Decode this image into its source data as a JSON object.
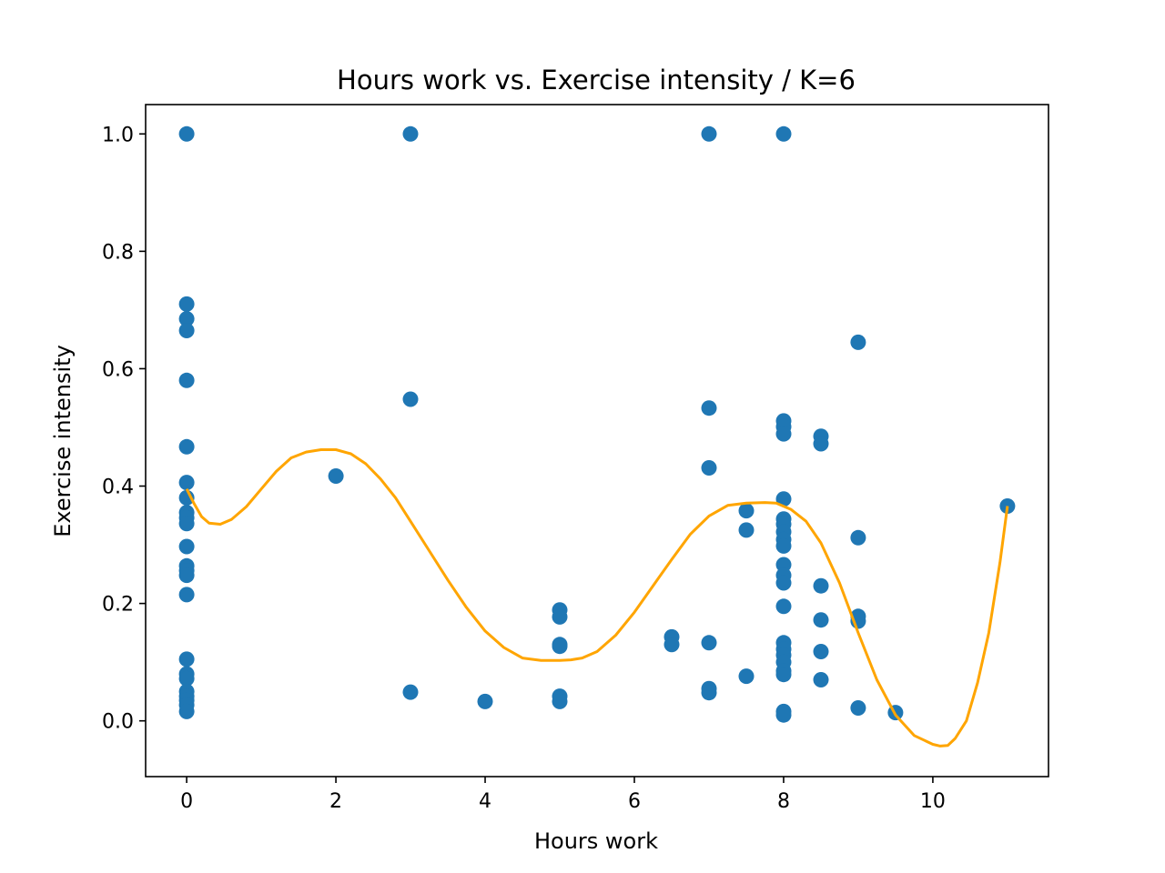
{
  "chart_data": {
    "type": "scatter",
    "title": "Hours work vs. Exercise intensity / K=6",
    "xlabel": "Hours work",
    "ylabel": "Exercise intensity",
    "xlim": [
      -0.55,
      11.55
    ],
    "ylim": [
      -0.095,
      1.05
    ],
    "xticks": [
      0,
      2,
      4,
      6,
      8,
      10
    ],
    "yticks": [
      0.0,
      0.2,
      0.4,
      0.6,
      0.8,
      1.0
    ],
    "xtick_labels": [
      "0",
      "2",
      "4",
      "6",
      "8",
      "10"
    ],
    "ytick_labels": [
      "0.0",
      "0.2",
      "0.4",
      "0.6",
      "0.8",
      "1.0"
    ],
    "grid": false,
    "colors": {
      "points": "#1f77b4",
      "fit": "#ffa500"
    },
    "points": [
      [
        0,
        1.0
      ],
      [
        0,
        0.71
      ],
      [
        0,
        0.685
      ],
      [
        0,
        0.665
      ],
      [
        0,
        0.58
      ],
      [
        0,
        0.467
      ],
      [
        0,
        0.406
      ],
      [
        0,
        0.38
      ],
      [
        0,
        0.355
      ],
      [
        0,
        0.346
      ],
      [
        0,
        0.336
      ],
      [
        0,
        0.297
      ],
      [
        0,
        0.264
      ],
      [
        0,
        0.256
      ],
      [
        0,
        0.248
      ],
      [
        0,
        0.215
      ],
      [
        0,
        0.105
      ],
      [
        0,
        0.08
      ],
      [
        0,
        0.072
      ],
      [
        0,
        0.05
      ],
      [
        0,
        0.042
      ],
      [
        0,
        0.035
      ],
      [
        0,
        0.027
      ],
      [
        0,
        0.016
      ],
      [
        2,
        0.417
      ],
      [
        3,
        1.0
      ],
      [
        3,
        0.548
      ],
      [
        3,
        0.049
      ],
      [
        4,
        0.033
      ],
      [
        5,
        0.189
      ],
      [
        5,
        0.177
      ],
      [
        5,
        0.13
      ],
      [
        5,
        0.127
      ],
      [
        5,
        0.042
      ],
      [
        5,
        0.033
      ],
      [
        6.5,
        0.143
      ],
      [
        6.5,
        0.13
      ],
      [
        7,
        1.0
      ],
      [
        7,
        0.533
      ],
      [
        7,
        0.431
      ],
      [
        7,
        0.133
      ],
      [
        7,
        0.055
      ],
      [
        7,
        0.048
      ],
      [
        7.5,
        0.358
      ],
      [
        7.5,
        0.325
      ],
      [
        7.5,
        0.076
      ],
      [
        8,
        1.0
      ],
      [
        8,
        0.511
      ],
      [
        8,
        0.501
      ],
      [
        8,
        0.489
      ],
      [
        8,
        0.378
      ],
      [
        8,
        0.344
      ],
      [
        8,
        0.335
      ],
      [
        8,
        0.322
      ],
      [
        8,
        0.309
      ],
      [
        8,
        0.298
      ],
      [
        8,
        0.266
      ],
      [
        8,
        0.248
      ],
      [
        8,
        0.235
      ],
      [
        8,
        0.195
      ],
      [
        8,
        0.133
      ],
      [
        8,
        0.122
      ],
      [
        8,
        0.112
      ],
      [
        8,
        0.1
      ],
      [
        8,
        0.085
      ],
      [
        8,
        0.079
      ],
      [
        8,
        0.016
      ],
      [
        8,
        0.01
      ],
      [
        8.5,
        0.485
      ],
      [
        8.5,
        0.472
      ],
      [
        8.5,
        0.23
      ],
      [
        8.5,
        0.172
      ],
      [
        8.5,
        0.118
      ],
      [
        8.5,
        0.07
      ],
      [
        9,
        0.645
      ],
      [
        9,
        0.312
      ],
      [
        9,
        0.178
      ],
      [
        9,
        0.17
      ],
      [
        9,
        0.022
      ],
      [
        9.5,
        0.014
      ],
      [
        11,
        0.366
      ]
    ],
    "fit_line": {
      "x": [
        0,
        0.1,
        0.2,
        0.3,
        0.45,
        0.6,
        0.8,
        1.0,
        1.2,
        1.4,
        1.6,
        1.8,
        2.0,
        2.2,
        2.4,
        2.6,
        2.8,
        3.0,
        3.25,
        3.5,
        3.75,
        4.0,
        4.25,
        4.5,
        4.75,
        5.0,
        5.15,
        5.3,
        5.5,
        5.75,
        6.0,
        6.25,
        6.5,
        6.75,
        7.0,
        7.25,
        7.5,
        7.75,
        7.9,
        8.1,
        8.3,
        8.5,
        8.75,
        9.0,
        9.25,
        9.5,
        9.75,
        10.0,
        10.1,
        10.2,
        10.3,
        10.45,
        10.6,
        10.75,
        10.9,
        11.0
      ],
      "y": [
        0.395,
        0.37,
        0.348,
        0.337,
        0.335,
        0.343,
        0.365,
        0.395,
        0.425,
        0.448,
        0.458,
        0.462,
        0.462,
        0.455,
        0.438,
        0.412,
        0.38,
        0.34,
        0.29,
        0.24,
        0.193,
        0.153,
        0.125,
        0.107,
        0.103,
        0.103,
        0.104,
        0.107,
        0.118,
        0.146,
        0.185,
        0.23,
        0.275,
        0.318,
        0.349,
        0.367,
        0.371,
        0.372,
        0.371,
        0.36,
        0.34,
        0.303,
        0.235,
        0.15,
        0.07,
        0.01,
        -0.025,
        -0.04,
        -0.043,
        -0.042,
        -0.03,
        0.0,
        0.065,
        0.15,
        0.27,
        0.366
      ]
    }
  }
}
